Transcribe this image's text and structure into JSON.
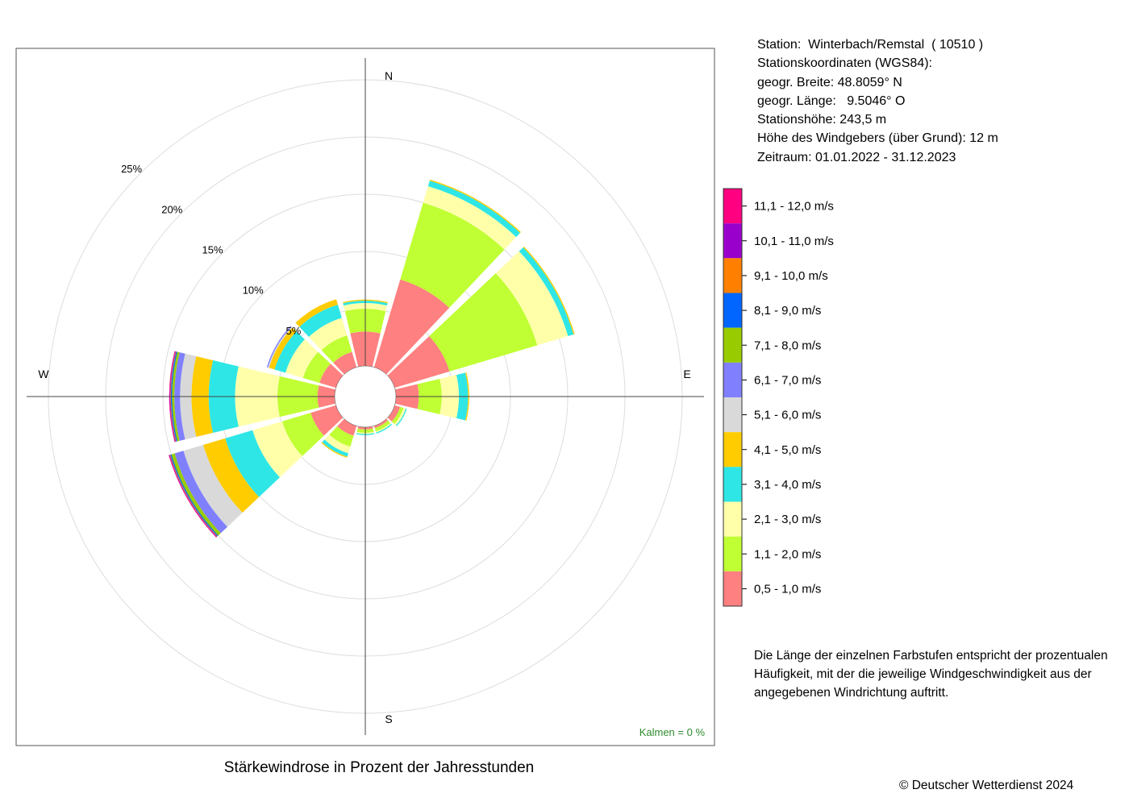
{
  "title": "Stärkewindrose in Prozent der Jahresstunden",
  "station": {
    "lines": [
      "Station:  Winterbach/Remstal  ( 10510 )",
      "Stationskoordinaten (WGS84):",
      "geogr. Breite: 48.8059° N",
      "geogr. Länge:   9.5046° O",
      "Stationshöhe: 243,5 m",
      "Höhe des Windgebers (über Grund): 12 m",
      "Zeitraum: 01.01.2022 - 31.12.2023"
    ]
  },
  "note": {
    "lines": [
      "Die Länge der einzelnen Farbstufen entspricht der prozentualen",
      "Häufigkeit, mit der die jeweilige Windgeschwindigkeit aus der",
      "angegebenen Windrichtung auftritt."
    ]
  },
  "copyright": "© Deutscher Wetterdienst  2024",
  "calm_text": "Kalmen  =  0 %",
  "chart_data": {
    "type": "windrose",
    "rings": [
      5,
      10,
      15,
      20,
      25
    ],
    "ring_labels": [
      "5%",
      "10%",
      "15%",
      "20%",
      "25%"
    ],
    "directions": [
      "N",
      "E",
      "S",
      "W"
    ],
    "sectors_deg": [
      0,
      30,
      60,
      90,
      120,
      150,
      180,
      210,
      240,
      270,
      300,
      330
    ],
    "legend": [
      {
        "label": "0,5 - 1,0 m/s",
        "color": "#ff8080"
      },
      {
        "label": "1,1 - 2,0 m/s",
        "color": "#c0ff33"
      },
      {
        "label": "2,1 - 3,0 m/s",
        "color": "#ffffaa"
      },
      {
        "label": "3,1 - 4,0 m/s",
        "color": "#2ee6e6"
      },
      {
        "label": "4,1 - 5,0 m/s",
        "color": "#ffcc00"
      },
      {
        "label": "5,1 - 6,0 m/s",
        "color": "#d9d9d9"
      },
      {
        "label": "6,1 - 7,0 m/s",
        "color": "#8080ff"
      },
      {
        "label": "7,1 - 8,0 m/s",
        "color": "#99cc00"
      },
      {
        "label": "8,1 - 9,0 m/s",
        "color": "#0066ff"
      },
      {
        "label": "9,1 - 10,0 m/s",
        "color": "#ff8000"
      },
      {
        "label": "10,1 - 11,0 m/s",
        "color": "#9900cc"
      },
      {
        "label": "11,1 - 12,0 m/s",
        "color": "#ff0080"
      }
    ],
    "frequencies_percent": [
      [
        3.0,
        2.0,
        0.5,
        0.2,
        0.1,
        0,
        0,
        0,
        0,
        0,
        0,
        0
      ],
      [
        8.0,
        7.0,
        1.5,
        0.5,
        0.1,
        0,
        0,
        0,
        0,
        0,
        0,
        0
      ],
      [
        5.0,
        8.0,
        2.8,
        0.5,
        0.1,
        0,
        0,
        0,
        0,
        0,
        0,
        0
      ],
      [
        2.0,
        2.0,
        1.5,
        0.8,
        0.1,
        0,
        0,
        0,
        0,
        0,
        0,
        0
      ],
      [
        0.5,
        0.3,
        0.2,
        0.1,
        0,
        0,
        0,
        0,
        0,
        0,
        0,
        0
      ],
      [
        0.2,
        0.3,
        0.1,
        0.1,
        0,
        0,
        0,
        0,
        0,
        0,
        0,
        0
      ],
      [
        0.2,
        0.3,
        0.1,
        0.1,
        0,
        0,
        0,
        0,
        0,
        0,
        0,
        0
      ],
      [
        0.9,
        1.0,
        0.6,
        0.3,
        0.1,
        0,
        0,
        0,
        0,
        0,
        0,
        0
      ],
      [
        2.3,
        2.6,
        2.7,
        2.5,
        2.0,
        1.8,
        0.8,
        0.3,
        0.1,
        0.05,
        0.05,
        0.05
      ],
      [
        1.5,
        3.5,
        3.7,
        2.3,
        1.5,
        1.0,
        0.5,
        0.2,
        0.1,
        0.05,
        0.05,
        0.05
      ],
      [
        1.5,
        1.5,
        1.6,
        1.0,
        0.5,
        0.1,
        0.1,
        0,
        0,
        0,
        0,
        0
      ],
      [
        1.4,
        1.5,
        1.6,
        1.2,
        0.5,
        0,
        0,
        0,
        0,
        0,
        0,
        0
      ]
    ]
  }
}
